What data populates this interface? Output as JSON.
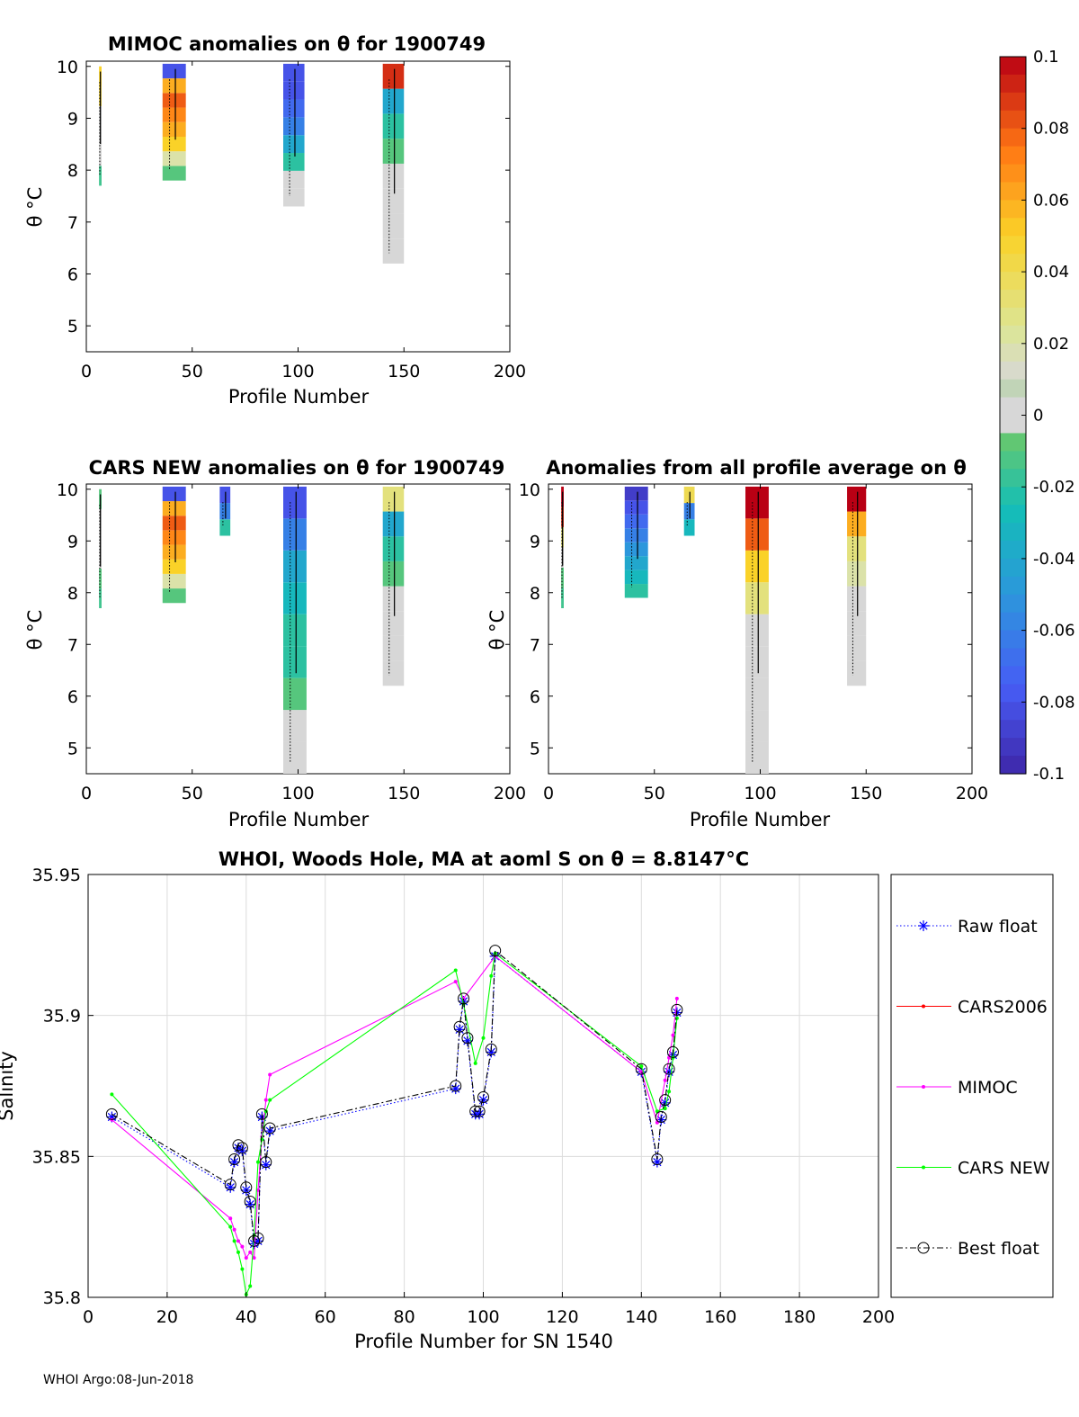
{
  "footer": "WHOI Argo:08-Jun-2018",
  "panels": {
    "mimoc": {
      "title": "MIMOC anomalies on θ  for 1900749",
      "xlabel": "Profile Number",
      "ylabel": "θ °C"
    },
    "cars": {
      "title": "CARS NEW anomalies on θ for 1900749",
      "xlabel": "Profile Number",
      "ylabel": "θ °C"
    },
    "avg": {
      "title": "Anomalies from all profile average on θ",
      "xlabel": "Profile Number",
      "ylabel": "θ °C"
    }
  },
  "colorbar": {
    "range": [
      -0.1,
      0.1
    ],
    "tick_labels": [
      "0.1",
      "0.08",
      "0.06",
      "0.04",
      "0.02",
      "0",
      "-0.02",
      "-0.04",
      "-0.06",
      "-0.08",
      "-0.1"
    ],
    "tick_values": [
      0.1,
      0.08,
      0.06,
      0.04,
      0.02,
      0,
      -0.02,
      -0.04,
      -0.06,
      -0.08,
      -0.1
    ]
  },
  "colors": {
    "raw": "#0000ff",
    "cars2006": "#ff0000",
    "mimoc": "#ff00ff",
    "carsnew": "#00ff00",
    "best": "#000000"
  },
  "chart_data": [
    {
      "type": "heatmap",
      "id": "mimoc",
      "title": "MIMOC anomalies on θ  for 1900749",
      "xlabel": "Profile Number",
      "ylabel": "θ °C",
      "xlim": [
        0,
        200
      ],
      "ylim": [
        4.5,
        10.1
      ],
      "xticks": [
        0,
        50,
        100,
        150,
        200
      ],
      "yticks": [
        5,
        6,
        7,
        8,
        9,
        10
      ],
      "columns": [
        {
          "x": 6,
          "w": 1.2,
          "ymin": 7.7,
          "ymax": 10.0,
          "vals": [
            -0.015,
            0.0,
            0.0,
            0.0,
            0.045,
            0.05
          ]
        },
        {
          "x": 36,
          "w": 11,
          "ymin": 7.8,
          "ymax": 10.05,
          "vals": [
            -0.01,
            0.02,
            0.05,
            0.06,
            0.07,
            0.08,
            0.06,
            -0.08
          ]
        },
        {
          "x": 93,
          "w": 10,
          "ymin": 7.3,
          "ymax": 10.05,
          "vals": [
            0.0,
            0.0,
            -0.02,
            -0.04,
            -0.06,
            -0.07,
            -0.08,
            -0.08
          ]
        },
        {
          "x": 140,
          "w": 10,
          "ymin": 6.2,
          "ymax": 10.05,
          "vals": [
            0.0,
            0.0,
            0.0,
            -0.005,
            -0.01,
            -0.02,
            -0.04,
            0.09
          ]
        }
      ]
    },
    {
      "type": "heatmap",
      "id": "cars",
      "title": "CARS NEW anomalies on θ for 1900749",
      "xlabel": "Profile Number",
      "ylabel": "θ °C",
      "xlim": [
        0,
        200
      ],
      "ylim": [
        4.5,
        10.1
      ],
      "xticks": [
        0,
        50,
        100,
        150,
        200
      ],
      "yticks": [
        5,
        6,
        7,
        8,
        9,
        10
      ],
      "columns": [
        {
          "x": 6,
          "w": 1.2,
          "ymin": 7.7,
          "ymax": 10.0,
          "vals": [
            -0.015,
            -0.01,
            0.0,
            0.0,
            0.0,
            -0.01
          ]
        },
        {
          "x": 36,
          "w": 11,
          "ymin": 7.8,
          "ymax": 10.05,
          "vals": [
            -0.01,
            0.02,
            0.05,
            0.06,
            0.07,
            0.08,
            0.06,
            -0.08
          ]
        },
        {
          "x": 63,
          "w": 5,
          "ymin": 9.1,
          "ymax": 10.05,
          "vals": [
            -0.02,
            -0.06,
            -0.08
          ]
        },
        {
          "x": 93,
          "w": 11,
          "ymin": 4.5,
          "ymax": 10.05,
          "vals": [
            0.0,
            -0.005,
            -0.01,
            -0.02,
            -0.02,
            -0.03,
            -0.04,
            -0.06,
            -0.08
          ]
        },
        {
          "x": 140,
          "w": 10,
          "ymin": 6.2,
          "ymax": 10.05,
          "vals": [
            0.0,
            0.0,
            0.0,
            -0.005,
            -0.01,
            -0.02,
            -0.04,
            0.03
          ]
        }
      ]
    },
    {
      "type": "heatmap",
      "id": "avg",
      "title": "Anomalies from all profile average on θ",
      "xlabel": "Profile Number",
      "ylabel": "θ °C",
      "xlim": [
        0,
        200
      ],
      "ylim": [
        4.5,
        10.1
      ],
      "xticks": [
        0,
        50,
        100,
        150,
        200
      ],
      "yticks": [
        5,
        6,
        7,
        8,
        9,
        10
      ],
      "columns": [
        {
          "x": 6,
          "w": 1.2,
          "ymin": 7.7,
          "ymax": 10.05,
          "vals": [
            -0.015,
            -0.01,
            0.0,
            0.03,
            0.09,
            0.1
          ]
        },
        {
          "x": 36,
          "w": 11,
          "ymin": 7.9,
          "ymax": 10.05,
          "vals": [
            -0.02,
            -0.03,
            -0.04,
            -0.05,
            -0.06,
            -0.07,
            -0.08,
            -0.09
          ]
        },
        {
          "x": 64,
          "w": 5,
          "ymin": 9.1,
          "ymax": 10.05,
          "vals": [
            -0.03,
            -0.06,
            0.04
          ]
        },
        {
          "x": 93,
          "w": 11,
          "ymin": 4.5,
          "ymax": 10.05,
          "vals": [
            0.0,
            0.0,
            0.0,
            0.0,
            0.01,
            0.03,
            0.05,
            0.08,
            0.1
          ]
        },
        {
          "x": 141,
          "w": 9,
          "ymin": 6.2,
          "ymax": 10.05,
          "vals": [
            0.0,
            0.0,
            0.0,
            0.01,
            0.02,
            0.03,
            0.06,
            0.1
          ]
        }
      ]
    },
    {
      "type": "line",
      "id": "salinity",
      "title": "WHOI, Woods Hole, MA at aoml S on θ = 8.8147°C",
      "xlabel": "Profile Number for SN 1540",
      "ylabel": "Salinity",
      "xlim": [
        0,
        200
      ],
      "ylim": [
        35.8,
        35.95
      ],
      "xticks": [
        0,
        20,
        40,
        60,
        80,
        100,
        120,
        140,
        160,
        180,
        200
      ],
      "ytick_values": [
        35.8,
        35.85,
        35.9,
        35.95
      ],
      "ytick_labels": [
        "35.8",
        "35.85",
        "35.9",
        "35.95"
      ],
      "grid": true,
      "legend_position": "outside-right",
      "series": [
        {
          "name": "Raw float",
          "key": "raw",
          "style": "dotted",
          "marker": "star",
          "x": [
            6,
            36,
            37,
            38,
            39,
            40,
            41,
            42,
            43,
            44,
            45,
            46,
            93,
            94,
            95,
            96,
            98,
            99,
            100,
            102,
            103,
            140,
            144,
            145,
            146,
            147,
            148,
            149
          ],
          "y": [
            35.864,
            35.839,
            35.848,
            35.853,
            35.852,
            35.838,
            35.833,
            35.819,
            35.82,
            35.864,
            35.847,
            35.859,
            35.874,
            35.895,
            35.905,
            35.891,
            35.865,
            35.865,
            35.87,
            35.887,
            35.921,
            35.88,
            35.848,
            35.863,
            35.869,
            35.88,
            35.886,
            35.901
          ]
        },
        {
          "name": "CARS2006",
          "key": "cars2006",
          "style": "solid",
          "marker": "dot",
          "x": [],
          "y": []
        },
        {
          "name": "MIMOC",
          "key": "mimoc",
          "style": "solid",
          "marker": "dot",
          "x": [
            6,
            36,
            37,
            38,
            39,
            40,
            41,
            42,
            43,
            44,
            45,
            46,
            93,
            95,
            103,
            140,
            144,
            146,
            147,
            148,
            149
          ],
          "y": [
            35.863,
            35.828,
            35.824,
            35.82,
            35.818,
            35.814,
            35.816,
            35.814,
            35.838,
            35.857,
            35.87,
            35.879,
            35.912,
            35.906,
            35.921,
            35.88,
            35.862,
            35.877,
            35.885,
            35.893,
            35.906
          ]
        },
        {
          "name": "CARS NEW",
          "key": "carsnew",
          "style": "solid",
          "marker": "dot",
          "x": [
            6,
            36,
            37,
            38,
            39,
            40,
            41,
            42,
            43,
            44,
            45,
            46,
            93,
            95,
            98,
            100,
            102,
            103,
            140,
            144,
            146,
            147,
            148,
            149
          ],
          "y": [
            35.872,
            35.825,
            35.82,
            35.816,
            35.81,
            35.801,
            35.804,
            35.822,
            35.848,
            35.856,
            35.866,
            35.87,
            35.916,
            35.904,
            35.883,
            35.892,
            35.914,
            35.922,
            35.882,
            35.866,
            35.867,
            35.873,
            35.885,
            35.899
          ]
        },
        {
          "name": "Best float",
          "key": "best",
          "style": "dashdot",
          "marker": "circle",
          "x": [
            6,
            36,
            37,
            38,
            39,
            40,
            41,
            42,
            43,
            44,
            45,
            46,
            93,
            94,
            95,
            96,
            98,
            99,
            100,
            102,
            103,
            140,
            144,
            145,
            146,
            147,
            148,
            149
          ],
          "y": [
            35.865,
            35.84,
            35.849,
            35.854,
            35.853,
            35.839,
            35.834,
            35.82,
            35.821,
            35.865,
            35.848,
            35.86,
            35.875,
            35.896,
            35.906,
            35.892,
            35.866,
            35.866,
            35.871,
            35.888,
            35.923,
            35.881,
            35.849,
            35.864,
            35.87,
            35.881,
            35.887,
            35.902
          ]
        }
      ]
    }
  ]
}
